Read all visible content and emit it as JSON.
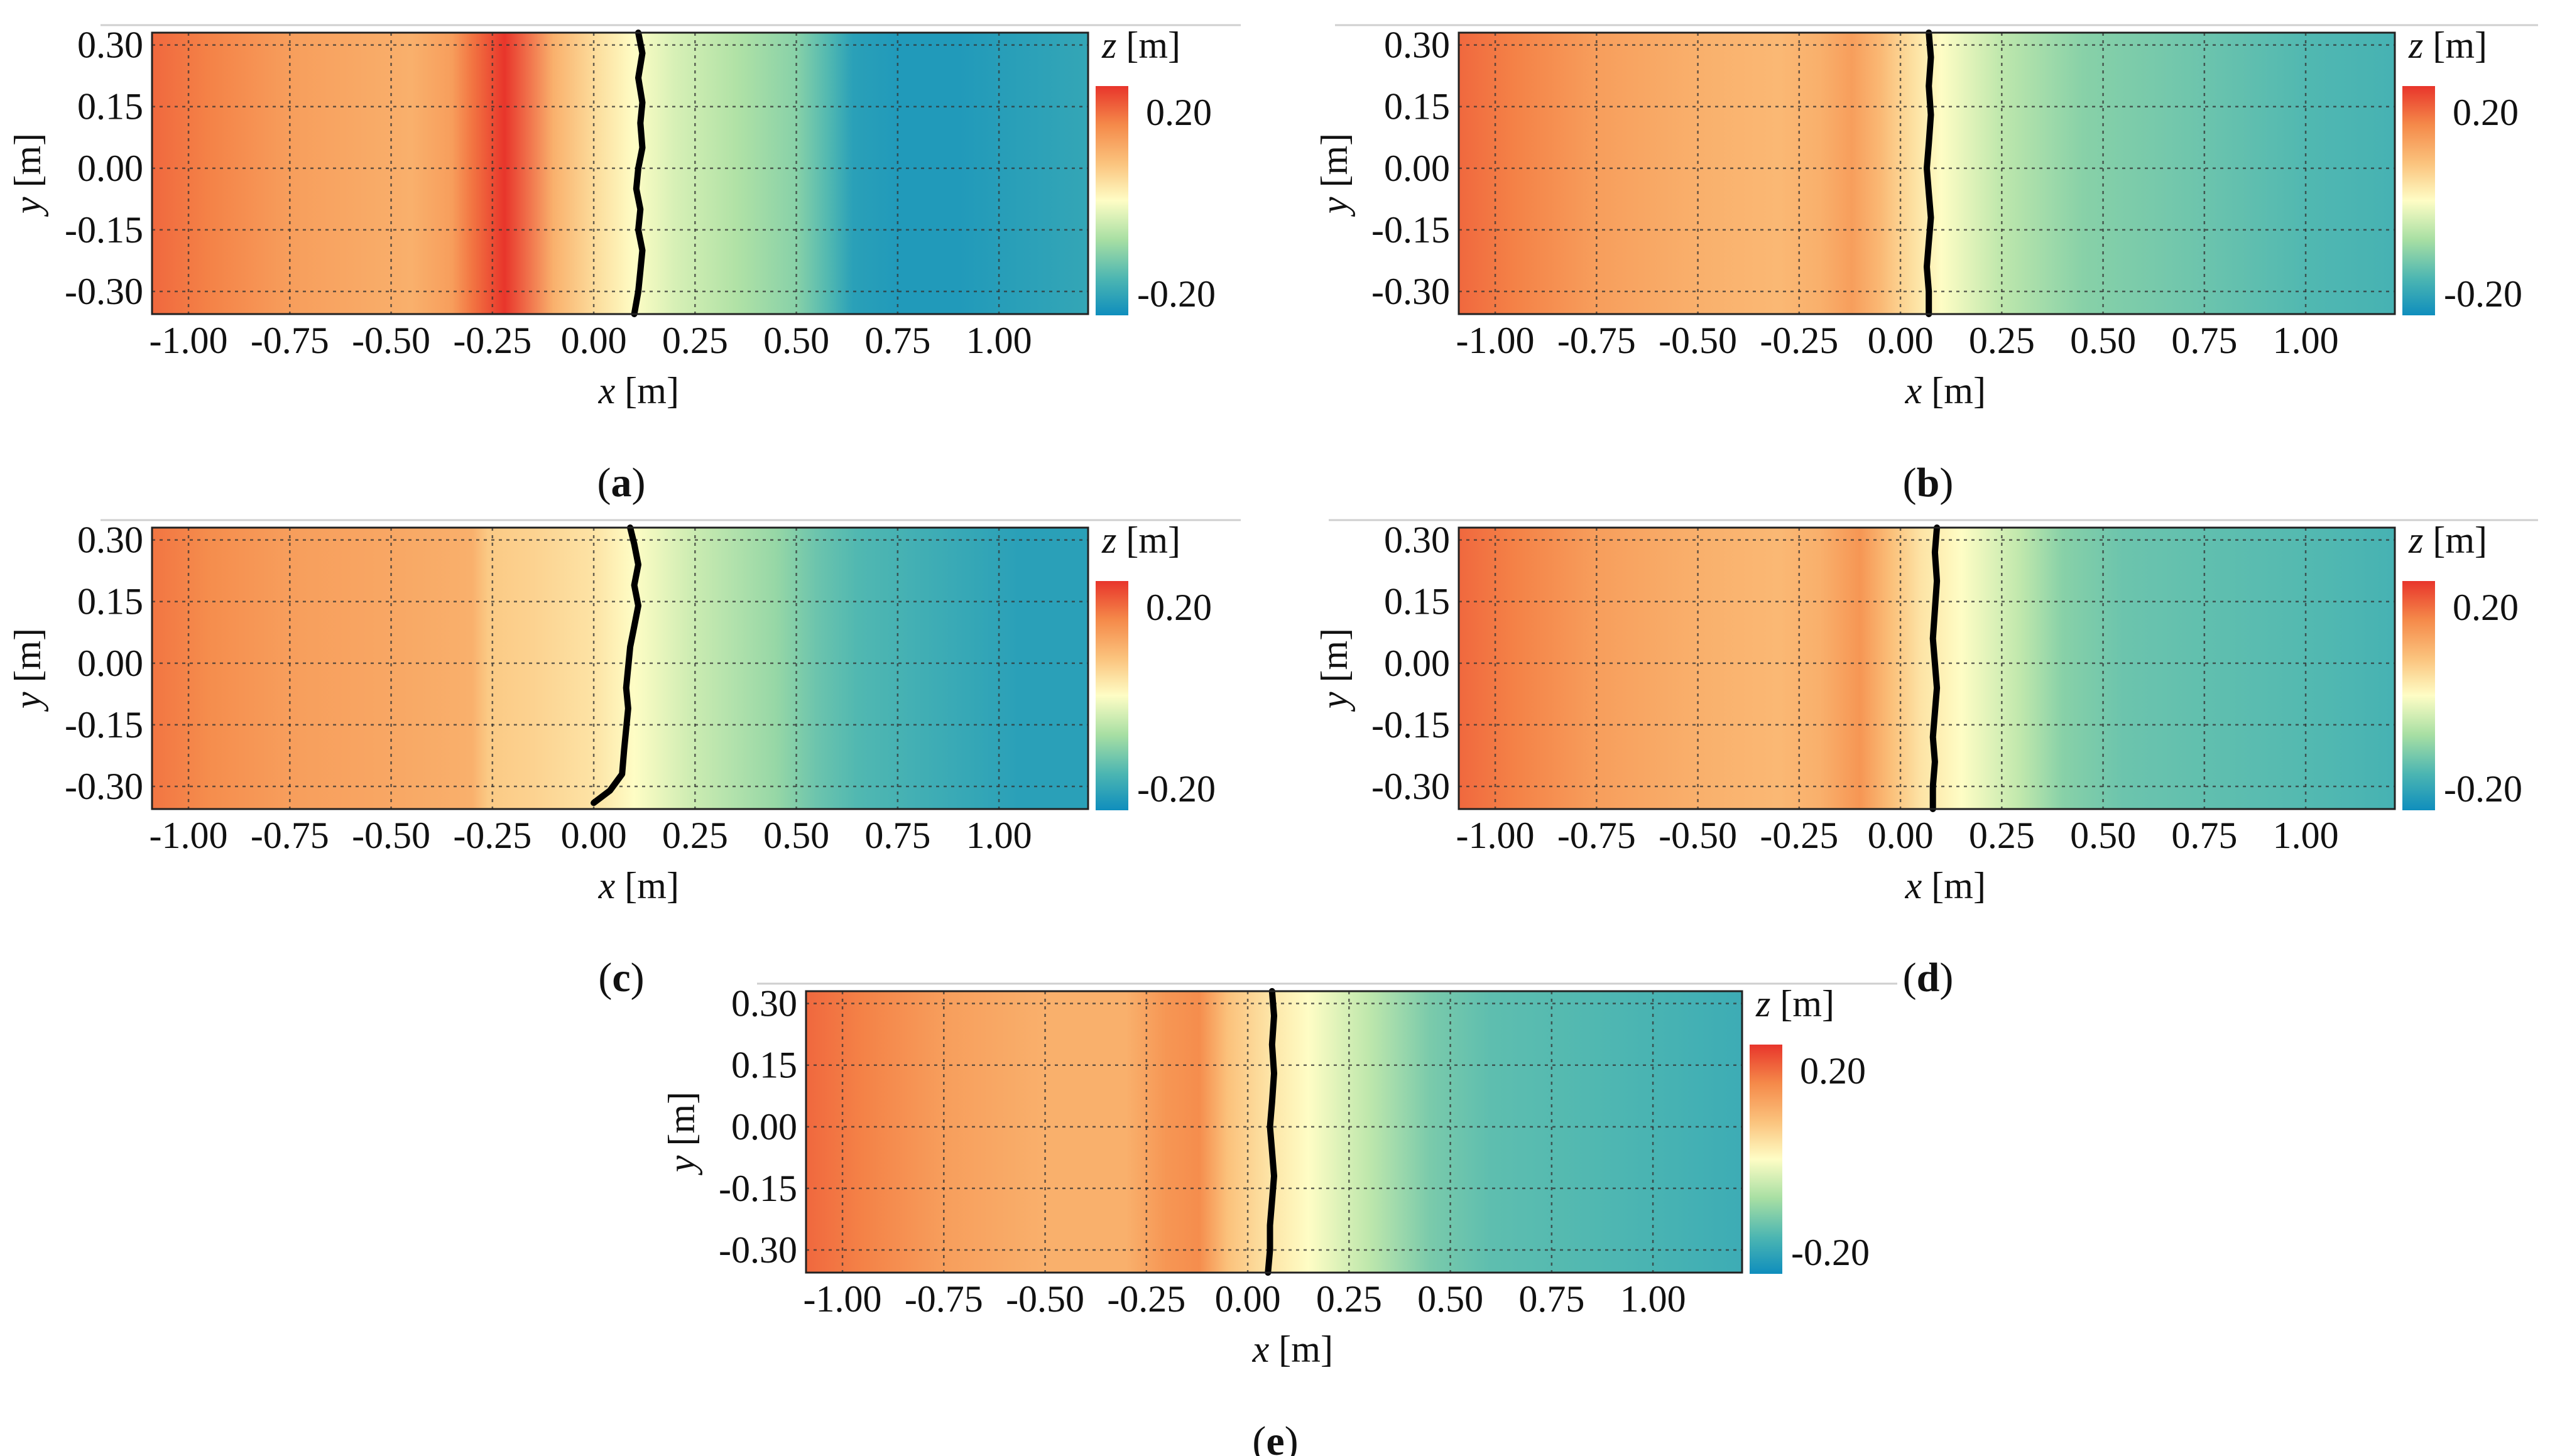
{
  "chart_data": [
    {
      "type": "heatmap",
      "panel": "a",
      "caption": "a",
      "xlabel_var": "x",
      "xlabel_unit": " [m]",
      "ylabel_var": "y",
      "ylabel_unit": " [m]",
      "colorbar_title_var": "z",
      "colorbar_title_unit": " [m]",
      "xlim": [
        -1.09,
        1.22
      ],
      "ylim": [
        -0.355,
        0.33
      ],
      "xticks": [
        -1.0,
        -0.75,
        -0.5,
        -0.25,
        0.0,
        0.25,
        0.5,
        0.75,
        1.0
      ],
      "xtick_labels": [
        "-1.00",
        "-0.75",
        "-0.50",
        "-0.25",
        "0.00",
        "0.25",
        "0.50",
        "0.75",
        "1.00"
      ],
      "yticks": [
        0.3,
        0.15,
        0.0,
        -0.15,
        -0.3
      ],
      "ytick_labels": [
        "0.30",
        "0.15",
        "0.00",
        "-0.15",
        "-0.30"
      ],
      "colorbar_range": [
        -0.2,
        0.2
      ],
      "colorbar_tick_labels": [
        "0.20",
        "-0.20"
      ],
      "profile_x": [
        -1.09,
        -0.95,
        -0.75,
        -0.45,
        -0.35,
        -0.3,
        -0.22,
        -0.1,
        0.0,
        0.1,
        0.2,
        0.35,
        0.5,
        0.58,
        0.64,
        0.75,
        0.9,
        1.22
      ],
      "profile_z": [
        0.16,
        0.14,
        0.11,
        0.09,
        0.11,
        0.15,
        0.2,
        0.09,
        0.04,
        0.0,
        -0.03,
        -0.06,
        -0.09,
        -0.13,
        -0.17,
        -0.18,
        -0.18,
        -0.16
      ],
      "front_x": [
        0.11,
        0.12,
        0.11,
        0.12,
        0.115,
        0.12,
        0.11,
        0.105,
        0.115,
        0.11,
        0.12,
        0.115,
        0.11,
        0.1
      ],
      "front_y": [
        0.33,
        0.28,
        0.22,
        0.16,
        0.11,
        0.05,
        0.0,
        -0.05,
        -0.1,
        -0.15,
        -0.2,
        -0.25,
        -0.3,
        -0.355
      ]
    },
    {
      "type": "heatmap",
      "panel": "b",
      "caption": "b",
      "xlabel_var": "x",
      "xlabel_unit": " [m]",
      "ylabel_var": "y",
      "ylabel_unit": " [m]",
      "colorbar_title_var": "z",
      "colorbar_title_unit": " [m]",
      "xlim": [
        -1.09,
        1.22
      ],
      "ylim": [
        -0.355,
        0.33
      ],
      "xticks": [
        -1.0,
        -0.75,
        -0.5,
        -0.25,
        0.0,
        0.25,
        0.5,
        0.75,
        1.0
      ],
      "xtick_labels": [
        "-1.00",
        "-0.75",
        "-0.50",
        "-0.25",
        "0.00",
        "0.25",
        "0.50",
        "0.75",
        "1.00"
      ],
      "yticks": [
        0.3,
        0.15,
        0.0,
        -0.15,
        -0.3
      ],
      "ytick_labels": [
        "0.30",
        "0.15",
        "0.00",
        "-0.15",
        "-0.30"
      ],
      "colorbar_range": [
        -0.2,
        0.2
      ],
      "colorbar_tick_labels": [
        "0.20",
        "-0.20"
      ],
      "profile_x": [
        -1.09,
        -0.95,
        -0.75,
        -0.5,
        -0.3,
        -0.2,
        -0.12,
        -0.05,
        0.0,
        0.1,
        0.25,
        0.45,
        0.75,
        1.0,
        1.22
      ],
      "profile_z": [
        0.16,
        0.14,
        0.11,
        0.09,
        0.08,
        0.09,
        0.11,
        0.08,
        0.05,
        0.0,
        -0.05,
        -0.09,
        -0.11,
        -0.13,
        -0.14
      ],
      "front_x": [
        0.07,
        0.075,
        0.07,
        0.075,
        0.07,
        0.065,
        0.07,
        0.075,
        0.07,
        0.065,
        0.07,
        0.07
      ],
      "front_y": [
        0.33,
        0.27,
        0.2,
        0.13,
        0.06,
        0.0,
        -0.06,
        -0.12,
        -0.18,
        -0.24,
        -0.3,
        -0.355
      ]
    },
    {
      "type": "heatmap",
      "panel": "c",
      "caption": "c",
      "xlabel_var": "x",
      "xlabel_unit": " [m]",
      "ylabel_var": "y",
      "ylabel_unit": " [m]",
      "colorbar_title_var": "z",
      "colorbar_title_unit": " [m]",
      "xlim": [
        -1.09,
        1.22
      ],
      "ylim": [
        -0.355,
        0.33
      ],
      "xticks": [
        -1.0,
        -0.75,
        -0.5,
        -0.25,
        0.0,
        0.25,
        0.5,
        0.75,
        1.0
      ],
      "xtick_labels": [
        "-1.00",
        "-0.75",
        "-0.50",
        "-0.25",
        "0.00",
        "0.25",
        "0.50",
        "0.75",
        "1.00"
      ],
      "yticks": [
        0.3,
        0.15,
        0.0,
        -0.15,
        -0.3
      ],
      "ytick_labels": [
        "0.30",
        "0.15",
        "0.00",
        "-0.15",
        "-0.30"
      ],
      "colorbar_range": [
        -0.2,
        0.2
      ],
      "colorbar_tick_labels": [
        "0.20",
        "-0.20"
      ],
      "profile_x": [
        -1.09,
        -0.95,
        -0.75,
        -0.5,
        -0.3,
        -0.26,
        -0.15,
        0.0,
        0.1,
        0.25,
        0.45,
        0.55,
        0.65,
        0.85,
        1.05,
        1.22
      ],
      "profile_z": [
        0.15,
        0.13,
        0.11,
        0.1,
        0.09,
        0.06,
        0.05,
        0.03,
        0.0,
        -0.04,
        -0.08,
        -0.11,
        -0.13,
        -0.15,
        -0.17,
        -0.17
      ],
      "front_x": [
        0.09,
        0.1,
        0.11,
        0.1,
        0.11,
        0.1,
        0.09,
        0.085,
        0.08,
        0.085,
        0.08,
        0.075,
        0.07,
        0.04,
        0.0
      ],
      "front_y": [
        0.33,
        0.29,
        0.24,
        0.19,
        0.14,
        0.09,
        0.04,
        -0.01,
        -0.06,
        -0.11,
        -0.16,
        -0.21,
        -0.27,
        -0.31,
        -0.34
      ]
    },
    {
      "type": "heatmap",
      "panel": "d",
      "caption": "d",
      "xlabel_var": "x",
      "xlabel_unit": " [m]",
      "ylabel_var": "y",
      "ylabel_unit": " [m]",
      "colorbar_title_var": "z",
      "colorbar_title_unit": " [m]",
      "xlim": [
        -1.09,
        1.22
      ],
      "ylim": [
        -0.355,
        0.33
      ],
      "xticks": [
        -1.0,
        -0.75,
        -0.5,
        -0.25,
        0.0,
        0.25,
        0.5,
        0.75,
        1.0
      ],
      "xtick_labels": [
        "-1.00",
        "-0.75",
        "-0.50",
        "-0.25",
        "0.00",
        "0.25",
        "0.50",
        "0.75",
        "1.00"
      ],
      "yticks": [
        0.3,
        0.15,
        0.0,
        -0.15,
        -0.3
      ],
      "ytick_labels": [
        "0.30",
        "0.15",
        "0.00",
        "-0.15",
        "-0.30"
      ],
      "colorbar_range": [
        -0.2,
        0.2
      ],
      "colorbar_tick_labels": [
        "0.20",
        "-0.20"
      ],
      "profile_x": [
        -1.09,
        -0.95,
        -0.75,
        -0.5,
        -0.3,
        -0.2,
        -0.1,
        -0.02,
        0.05,
        0.15,
        0.3,
        0.4,
        0.55,
        0.8,
        1.05,
        1.22
      ],
      "profile_z": [
        0.16,
        0.14,
        0.11,
        0.09,
        0.08,
        0.09,
        0.12,
        0.07,
        0.03,
        0.0,
        -0.05,
        -0.09,
        -0.11,
        -0.12,
        -0.13,
        -0.14
      ],
      "front_x": [
        0.09,
        0.085,
        0.09,
        0.085,
        0.08,
        0.085,
        0.09,
        0.085,
        0.08,
        0.085,
        0.08,
        0.08
      ],
      "front_y": [
        0.33,
        0.27,
        0.2,
        0.13,
        0.06,
        0.0,
        -0.06,
        -0.12,
        -0.18,
        -0.24,
        -0.3,
        -0.355
      ]
    },
    {
      "type": "heatmap",
      "panel": "e",
      "caption": "e",
      "xlabel_var": "x",
      "xlabel_unit": " [m]",
      "ylabel_var": "y",
      "ylabel_unit": " [m]",
      "colorbar_title_var": "z",
      "colorbar_title_unit": " [m]",
      "xlim": [
        -1.09,
        1.22
      ],
      "ylim": [
        -0.355,
        0.33
      ],
      "xticks": [
        -1.0,
        -0.75,
        -0.5,
        -0.25,
        0.0,
        0.25,
        0.5,
        0.75,
        1.0
      ],
      "xtick_labels": [
        "-1.00",
        "-0.75",
        "-0.50",
        "-0.25",
        "0.00",
        "0.25",
        "0.50",
        "0.75",
        "1.00"
      ],
      "yticks": [
        0.3,
        0.15,
        0.0,
        -0.15,
        -0.3
      ],
      "ytick_labels": [
        "0.30",
        "0.15",
        "0.00",
        "-0.15",
        "-0.30"
      ],
      "colorbar_range": [
        -0.2,
        0.2
      ],
      "colorbar_tick_labels": [
        "0.20",
        "-0.20"
      ],
      "profile_x": [
        -1.09,
        -0.95,
        -0.75,
        -0.5,
        -0.3,
        -0.2,
        -0.12,
        -0.05,
        0.05,
        0.15,
        0.3,
        0.45,
        0.6,
        0.85,
        1.05,
        1.22
      ],
      "profile_z": [
        0.16,
        0.14,
        0.11,
        0.09,
        0.09,
        0.12,
        0.13,
        0.07,
        0.03,
        0.0,
        -0.05,
        -0.1,
        -0.12,
        -0.13,
        -0.14,
        -0.15
      ],
      "front_x": [
        0.06,
        0.065,
        0.06,
        0.065,
        0.06,
        0.055,
        0.06,
        0.065,
        0.06,
        0.055,
        0.055,
        0.05
      ],
      "front_y": [
        0.33,
        0.27,
        0.2,
        0.13,
        0.06,
        0.0,
        -0.06,
        -0.12,
        -0.18,
        -0.24,
        -0.3,
        -0.355
      ]
    }
  ],
  "colormap": [
    "#e8352b",
    "#f58a4a",
    "#fbc47e",
    "#fefdc5",
    "#a8dfa3",
    "#4cb6b2",
    "#0f8ebd"
  ]
}
